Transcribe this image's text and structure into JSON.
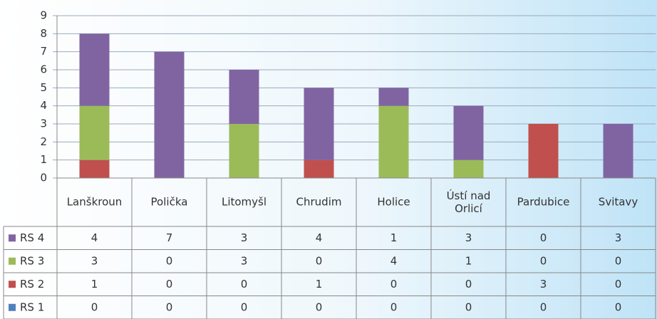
{
  "chart_data": {
    "type": "stacked_bar",
    "categories": [
      "Lanškroun",
      "Polička",
      "Litomyšl",
      "Chrudim",
      "Holice",
      "Ústí nad Orlicí",
      "Pardubice",
      "Svitavy"
    ],
    "series": [
      {
        "name": "RS 4",
        "color": "#8064a2",
        "values": [
          4,
          7,
          3,
          4,
          1,
          3,
          0,
          3
        ]
      },
      {
        "name": "RS 3",
        "color": "#9bbb59",
        "values": [
          3,
          0,
          3,
          0,
          4,
          1,
          0,
          0
        ]
      },
      {
        "name": "RS 2",
        "color": "#c0504d",
        "values": [
          1,
          0,
          0,
          1,
          0,
          0,
          3,
          0
        ]
      },
      {
        "name": "RS 1",
        "color": "#4f81bd",
        "values": [
          0,
          0,
          0,
          0,
          0,
          0,
          0,
          0
        ]
      }
    ],
    "ylim": [
      0,
      9
    ],
    "yticks": [
      0,
      1,
      2,
      3,
      4,
      5,
      6,
      7,
      8,
      9
    ],
    "grid": true
  }
}
